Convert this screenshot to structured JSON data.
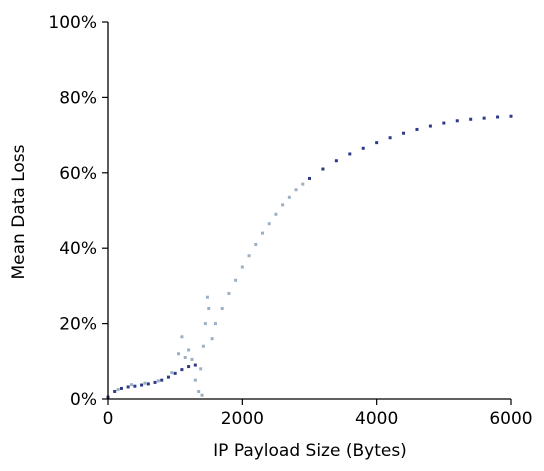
{
  "chart_data": {
    "type": "scatter",
    "title": "",
    "xlabel": "IP Payload Size (Bytes)",
    "ylabel": "Mean Data Loss",
    "xlim": [
      0,
      6000
    ],
    "ylim": [
      0,
      100
    ],
    "x_ticks": [
      0,
      2000,
      4000,
      6000
    ],
    "x_tick_labels": [
      "0",
      "2000",
      "4000",
      "6000"
    ],
    "y_ticks": [
      0,
      20,
      40,
      60,
      80,
      100
    ],
    "y_tick_labels": [
      "0%",
      "20%",
      "40%",
      "60%",
      "80%",
      "100%"
    ],
    "grid": false,
    "legend": "none",
    "colors": {
      "main": "#2e3a87",
      "faded": "#9bb0c4"
    },
    "series": [
      {
        "color": "#2e3a87",
        "points": [
          [
            0,
            0.5
          ],
          [
            100,
            2.0
          ],
          [
            200,
            2.8
          ],
          [
            300,
            3.2
          ],
          [
            400,
            3.4
          ],
          [
            500,
            3.7
          ],
          [
            600,
            4.0
          ],
          [
            700,
            4.4
          ],
          [
            800,
            5.0
          ],
          [
            900,
            5.8
          ],
          [
            1000,
            6.8
          ],
          [
            1100,
            7.8
          ],
          [
            1200,
            8.6
          ],
          [
            1300,
            9.0
          ],
          [
            3000,
            58.5
          ],
          [
            3200,
            61.0
          ],
          [
            3400,
            63.2
          ],
          [
            3600,
            65.0
          ],
          [
            3800,
            66.5
          ],
          [
            4000,
            68.0
          ],
          [
            4200,
            69.3
          ],
          [
            4400,
            70.5
          ],
          [
            4600,
            71.5
          ],
          [
            4800,
            72.4
          ],
          [
            5000,
            73.2
          ],
          [
            5200,
            73.8
          ],
          [
            5400,
            74.2
          ],
          [
            5600,
            74.5
          ],
          [
            5800,
            74.8
          ],
          [
            6000,
            75.0
          ]
        ]
      },
      {
        "color": "#9bb0c4",
        "points": [
          [
            150,
            2.5
          ],
          [
            350,
            3.8
          ],
          [
            550,
            4.2
          ],
          [
            750,
            4.8
          ],
          [
            950,
            7.0
          ],
          [
            1050,
            12.0
          ],
          [
            1100,
            16.5
          ],
          [
            1150,
            11.0
          ],
          [
            1200,
            13.0
          ],
          [
            1250,
            10.5
          ],
          [
            1300,
            5.0
          ],
          [
            1350,
            2.0
          ],
          [
            1380,
            8.0
          ],
          [
            1400,
            1.0
          ],
          [
            1420,
            14.0
          ],
          [
            1450,
            20.0
          ],
          [
            1480,
            27.0
          ],
          [
            1500,
            24.0
          ],
          [
            1550,
            16.0
          ],
          [
            1600,
            20.0
          ],
          [
            1700,
            24.0
          ],
          [
            1800,
            28.0
          ],
          [
            1900,
            31.5
          ],
          [
            2000,
            35.0
          ],
          [
            2100,
            38.0
          ],
          [
            2200,
            41.0
          ],
          [
            2300,
            44.0
          ],
          [
            2400,
            46.5
          ],
          [
            2500,
            49.0
          ],
          [
            2600,
            51.5
          ],
          [
            2700,
            53.5
          ],
          [
            2800,
            55.5
          ],
          [
            2900,
            57.0
          ]
        ]
      }
    ]
  }
}
